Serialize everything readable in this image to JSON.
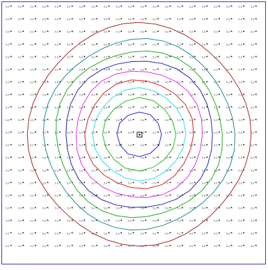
{
  "diagram": {
    "kind": "concentric contour rings over a grid of tiny cell labels",
    "colors": {
      "frame": "#3b3bb0",
      "ring_1": "#2424c8",
      "ring_2": "#22bb22",
      "ring_3": "#33dddd",
      "ring_4": "#d02424",
      "ring_5": "#dd33dd",
      "ring_6": "#2424a0",
      "ring_7": "#22aa22",
      "ring_8": "#228b8b",
      "ring_9": "#a52a2a",
      "cell_text": "#333333",
      "cell_glyph": "#111111"
    },
    "cell_label": "5.0",
    "center_marker": "square-with-dot-icon"
  }
}
